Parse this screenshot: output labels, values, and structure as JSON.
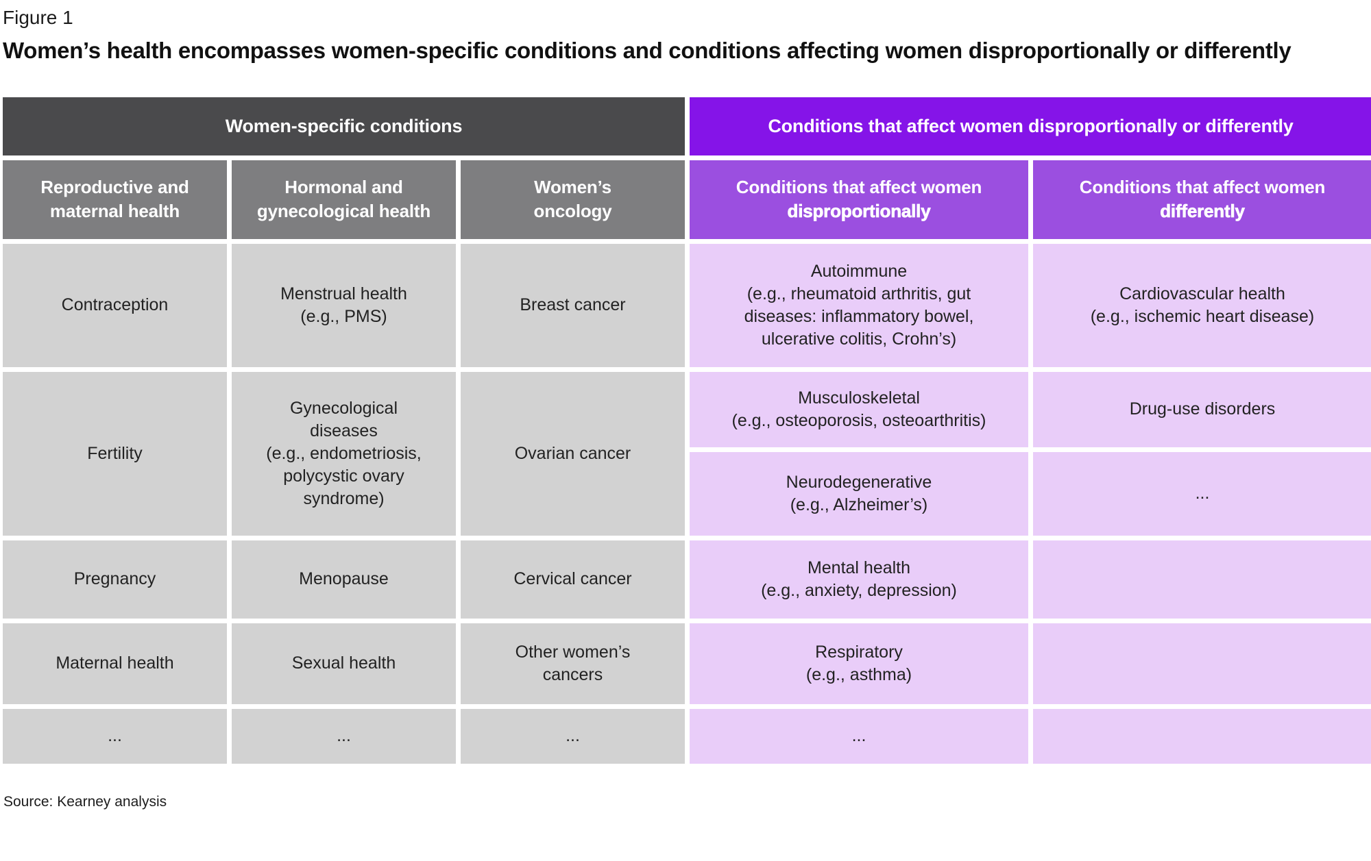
{
  "figure": {
    "label": "Figure 1",
    "title": "Women’s health encompasses women-specific conditions and conditions affecting women disproportionally or differently",
    "source": "Source: Kearney analysis"
  },
  "colors": {
    "dark_header": "#4a4a4c",
    "gray_subheader": "#7e7e80",
    "gray_cell": "#d2d2d2",
    "purple_header": "#8514e8",
    "purple_subheader": "#9b4fe0",
    "purple_cell": "#e9cdf9"
  },
  "table": {
    "group_headers": {
      "left": "Women-specific conditions",
      "right": "Conditions that affect women disproportionally or differently"
    },
    "column_headers": {
      "col1": "Reproductive and\nmaternal health",
      "col2": "Hormonal and\ngynecological health",
      "col3": "Women’s\noncology",
      "col4_line1": "Conditions that affect women",
      "col4_line2": "disproportionally",
      "col5_line1": "Conditions that affect women",
      "col5_line2": "differently"
    },
    "cells": {
      "contraception": "Contraception",
      "menstrual_health": "Menstrual health\n(e.g., PMS)",
      "breast_cancer": "Breast cancer",
      "autoimmune": "Autoimmune\n(e.g., rheumatoid arthritis, gut\ndiseases: inflammatory bowel,\nulcerative colitis, Crohn’s)",
      "cardiovascular": "Cardiovascular health\n(e.g., ischemic heart disease)",
      "fertility": "Fertility",
      "gynecological_diseases": "Gynecological\ndiseases\n(e.g., endometriosis,\npolycystic ovary\nsyndrome)",
      "ovarian_cancer": "Ovarian cancer",
      "musculoskeletal": "Musculoskeletal\n(e.g., osteoporosis, osteoarthritis)",
      "drug_use_disorders": "Drug-use disorders",
      "neurodegenerative": "Neurodegenerative\n(e.g., Alzheimer’s)",
      "differently_ellipsis": "...",
      "pregnancy": "Pregnancy",
      "menopause": "Menopause",
      "cervical_cancer": "Cervical cancer",
      "mental_health": "Mental health\n(e.g., anxiety, depression)",
      "maternal_health": "Maternal health",
      "sexual_health": "Sexual health",
      "other_cancers": "Other women’s\ncancers",
      "respiratory": "Respiratory\n(e.g., asthma)",
      "ellipsis_col1": "...",
      "ellipsis_col2": "...",
      "ellipsis_col3": "...",
      "ellipsis_col4": "...",
      "empty": ""
    }
  }
}
